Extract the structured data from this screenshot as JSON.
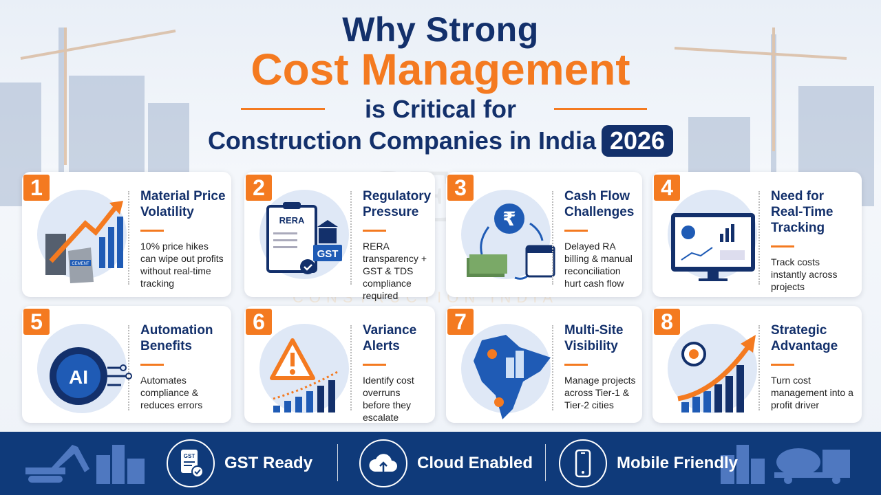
{
  "title": {
    "line1": "Why Strong",
    "line2": "Cost Management",
    "line3": "is Critical for",
    "line4": "Construction Companies in India",
    "year": "2026"
  },
  "watermark": {
    "logo": "CEL",
    "sub": "CONSTRUCTION INDIA"
  },
  "colors": {
    "navy": "#13306b",
    "orange": "#f47a20",
    "bar": "#0f3a7a"
  },
  "cards": [
    {
      "num": "1",
      "title": "Material Price Volatility",
      "desc": "10% price hikes can wipe out profits without real-time tracking",
      "icon": "price-chart-cement-icon",
      "icon_text": "CEMENT"
    },
    {
      "num": "2",
      "title": "Regulatory Pressure",
      "desc": "RERA transparency + GST & TDS compliance required",
      "icon": "rera-clipboard-gst-icon",
      "icon_text": "RERA",
      "icon_text2": "GST"
    },
    {
      "num": "3",
      "title": "Cash Flow Challenges",
      "desc": "Delayed RA billing & manual reconciliation hurt cash flow",
      "icon": "rupee-cashflow-icon",
      "icon_text": "₹"
    },
    {
      "num": "4",
      "title": "Need for Real-Time Tracking",
      "desc": "Track costs instantly across projects",
      "icon": "dashboard-monitor-icon"
    },
    {
      "num": "5",
      "title": "Automation Benefits",
      "desc": "Automates compliance & reduces errors",
      "icon": "ai-gear-icon",
      "icon_text": "AI"
    },
    {
      "num": "6",
      "title": "Variance Alerts",
      "desc": "Identify cost overruns before they escalate",
      "icon": "warning-chart-icon"
    },
    {
      "num": "7",
      "title": "Multi-Site Visibility",
      "desc": "Manage projects across Tier-1 & Tier-2 cities",
      "icon": "india-map-icon"
    },
    {
      "num": "8",
      "title": "Strategic Advantage",
      "desc": "Turn cost management into a profit driver",
      "icon": "target-growth-icon"
    }
  ],
  "footer": {
    "items": [
      {
        "label": "GST Ready",
        "icon": "gst-document-icon",
        "icon_text": "GST"
      },
      {
        "label": "Cloud Enabled",
        "icon": "cloud-upload-icon"
      },
      {
        "label": "Mobile Friendly",
        "icon": "mobile-phone-icon"
      }
    ]
  }
}
